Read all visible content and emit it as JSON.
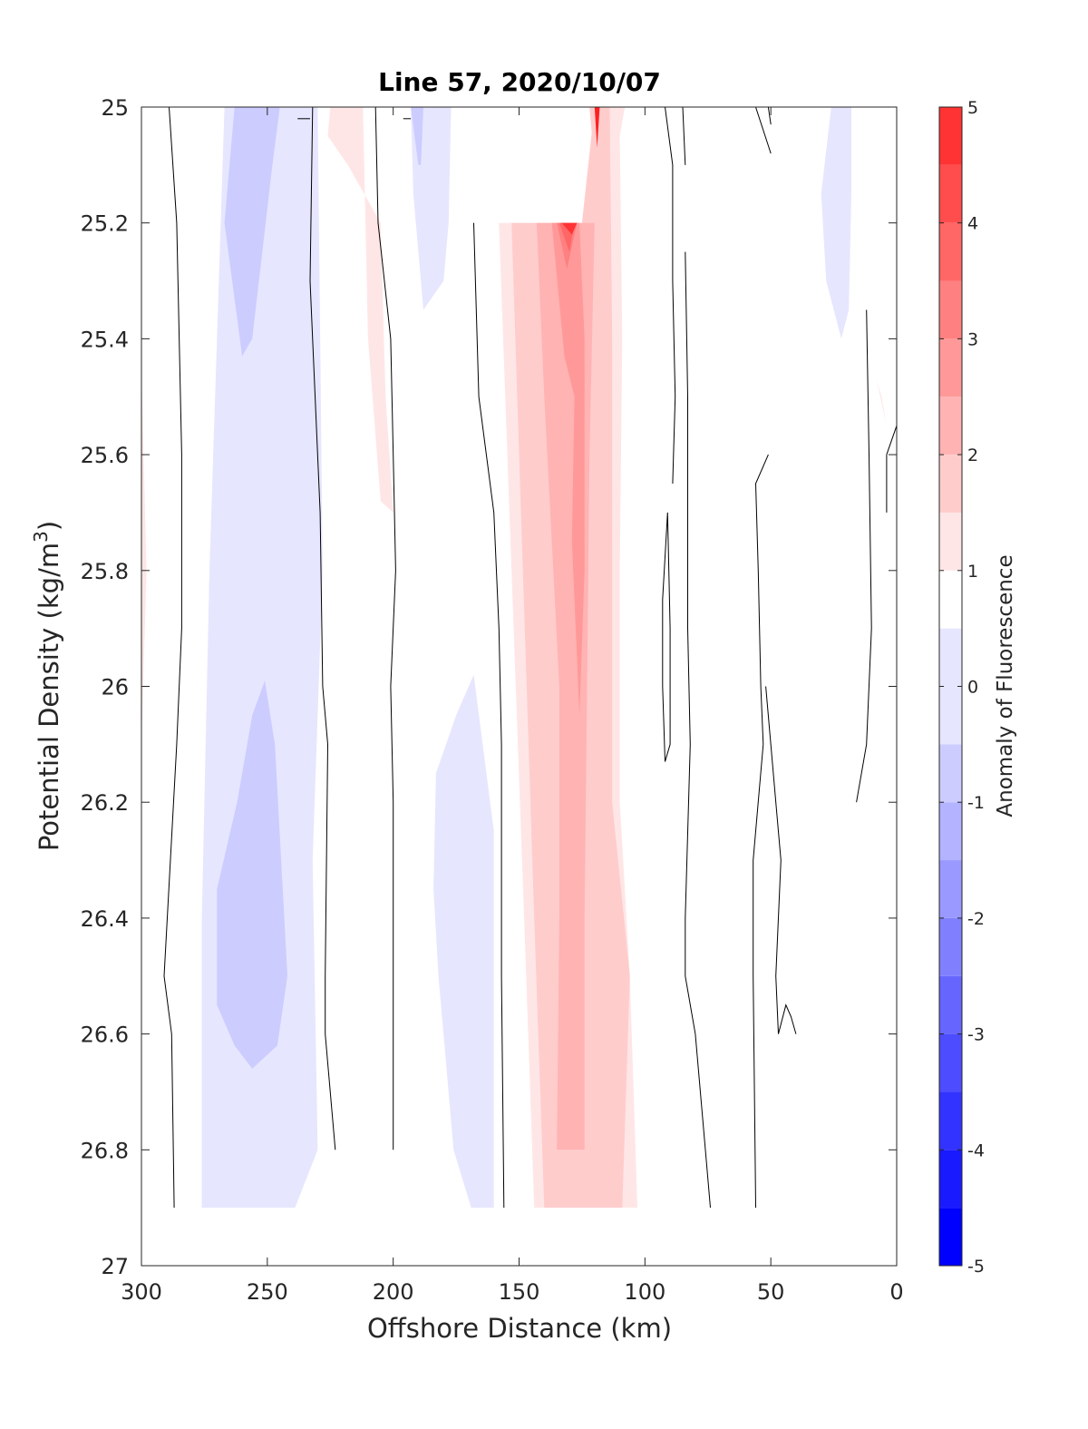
{
  "chart_data": {
    "type": "contour",
    "title": "Line 57, 2020/10/07",
    "xlabel": "Offshore Distance (km)",
    "ylabel_main": "Potential Density (kg/m",
    "ylabel_sup": "3",
    "ylabel_close": ")",
    "xlim": [
      300,
      0
    ],
    "ylim": [
      25,
      27
    ],
    "x_reversed": true,
    "y_reversed": true,
    "xticks": [
      300,
      250,
      200,
      150,
      100,
      50,
      0
    ],
    "yticks": [
      25,
      25.2,
      25.4,
      25.6,
      25.8,
      26,
      26.2,
      26.4,
      26.6,
      26.8,
      27
    ],
    "ytick_labels": [
      "25",
      "25.2",
      "25.4",
      "25.6",
      "25.8",
      "26",
      "26.2",
      "26.4",
      "26.6",
      "26.8",
      "27"
    ],
    "colorbar": {
      "label": "Anomaly of Fluorescence",
      "limits": [
        -5,
        5
      ],
      "ticks": [
        -5,
        -4,
        -3,
        -2,
        -1,
        0,
        1,
        2,
        3,
        4,
        5
      ],
      "levels": [
        -5,
        -4.5,
        -4,
        -3.5,
        -3,
        -2.5,
        -2,
        -1.5,
        -1,
        -0.5,
        0.5,
        1,
        1.5,
        2,
        2.5,
        3,
        3.5,
        4,
        4.5,
        5
      ],
      "colors": [
        "#0000ff",
        "#1a1aff",
        "#3333ff",
        "#4d4dff",
        "#6666ff",
        "#8080ff",
        "#9999ff",
        "#b3b3ff",
        "#ccccff",
        "#e6e6ff",
        "#ffffff",
        "#ffe6e6",
        "#ffcccc",
        "#ffb3b3",
        "#ff9999",
        "#ff8080",
        "#ff6666",
        "#ff4d4d",
        "#ff3333",
        "#ff1a1a"
      ],
      "position": "right",
      "orientation": "vertical"
    },
    "regions": [
      {
        "level": -0.75,
        "color": "#e6e6ff",
        "points": [
          [
            295,
            25
          ],
          [
            267,
            25
          ],
          [
            273,
            25.8
          ],
          [
            276,
            26.4
          ],
          [
            276,
            26.9
          ],
          [
            239,
            26.9
          ],
          [
            230,
            26.8
          ],
          [
            232,
            26.3
          ],
          [
            228,
            25.8
          ],
          [
            230,
            25
          ]
        ]
      },
      {
        "level": -1.25,
        "color": "#ccccff",
        "points": [
          [
            263,
            25
          ],
          [
            245,
            25
          ],
          [
            248,
            25.1
          ],
          [
            256,
            25.4
          ],
          [
            260,
            25.43
          ],
          [
            267,
            25.2
          ]
        ]
      },
      {
        "level": -1.25,
        "color": "#ccccff",
        "points": [
          [
            251,
            25.99
          ],
          [
            247,
            26.1
          ],
          [
            242,
            26.5
          ],
          [
            246,
            26.62
          ],
          [
            256,
            26.66
          ],
          [
            263,
            26.62
          ],
          [
            270,
            26.55
          ],
          [
            270,
            26.35
          ],
          [
            262,
            26.2
          ],
          [
            256,
            26.05
          ]
        ]
      },
      {
        "level": 0.75,
        "color": "#ffe6e6",
        "points": [
          [
            300,
            25.45
          ],
          [
            298,
            25.8
          ],
          [
            300,
            26.1
          ]
        ]
      },
      {
        "level": 0.75,
        "color": "#ffe6e6",
        "points": [
          [
            225,
            25
          ],
          [
            212,
            25
          ],
          [
            210,
            25.4
          ],
          [
            205,
            25.68
          ],
          [
            200,
            25.7
          ],
          [
            203,
            25.5
          ],
          [
            205,
            25.2
          ],
          [
            218,
            25.1
          ],
          [
            226,
            25.05
          ]
        ]
      },
      {
        "level": -0.75,
        "color": "#e6e6ff",
        "points": [
          [
            193,
            25
          ],
          [
            177,
            25
          ],
          [
            178,
            25.2
          ],
          [
            180,
            25.3
          ],
          [
            188,
            25.35
          ],
          [
            192,
            25.15
          ]
        ]
      },
      {
        "level": -1.25,
        "color": "#ccccff",
        "points": [
          [
            193,
            25
          ],
          [
            188,
            25
          ],
          [
            189,
            25.1
          ],
          [
            190,
            25.1
          ]
        ]
      },
      {
        "level": -0.75,
        "color": "#e6e6ff",
        "points": [
          [
            168,
            25.98
          ],
          [
            160,
            26.25
          ],
          [
            160,
            26.9
          ],
          [
            169,
            26.9
          ],
          [
            176,
            26.8
          ],
          [
            182,
            26.5
          ],
          [
            184,
            26.35
          ],
          [
            183,
            26.15
          ],
          [
            175,
            26.05
          ]
        ]
      },
      {
        "level": 0.75,
        "color": "#ffe6e6",
        "points": [
          [
            158,
            25.2
          ],
          [
            148,
            26.4
          ],
          [
            144,
            26.9
          ],
          [
            109,
            26.9
          ],
          [
            103,
            26.9
          ],
          [
            106,
            26.5
          ],
          [
            110,
            26.2
          ],
          [
            110,
            25.8
          ],
          [
            109,
            25.4
          ],
          [
            110,
            25.05
          ],
          [
            108,
            25
          ],
          [
            120,
            25
          ],
          [
            125,
            25.2
          ]
        ]
      },
      {
        "level": 1.25,
        "color": "#ffcccc",
        "points": [
          [
            153,
            25.2
          ],
          [
            144,
            26.4
          ],
          [
            140,
            26.9
          ],
          [
            109,
            26.9
          ],
          [
            106,
            26.5
          ],
          [
            113,
            26.2
          ],
          [
            113,
            25.8
          ],
          [
            113,
            25.4
          ],
          [
            114,
            25
          ],
          [
            120,
            25
          ],
          [
            125,
            25.2
          ]
        ]
      },
      {
        "level": 1.75,
        "color": "#ffb3b3",
        "points": [
          [
            143,
            25.2
          ],
          [
            140,
            25.5
          ],
          [
            134,
            26
          ],
          [
            134,
            26.4
          ],
          [
            135,
            26.8
          ],
          [
            124,
            26.8
          ],
          [
            124,
            26.4
          ],
          [
            123,
            26
          ],
          [
            122,
            25.6
          ],
          [
            120,
            25.2
          ],
          [
            125,
            25.2
          ]
        ]
      },
      {
        "level": 2.25,
        "color": "#ff9999",
        "points": [
          [
            137,
            25.2
          ],
          [
            132,
            25.43
          ],
          [
            128,
            25.5
          ],
          [
            129,
            25.75
          ],
          [
            126,
            26.05
          ],
          [
            124,
            25.8
          ],
          [
            124,
            25.4
          ],
          [
            126,
            25.2
          ]
        ]
      },
      {
        "level": 2.75,
        "color": "#ff8080",
        "points": [
          [
            135,
            25.2
          ],
          [
            131,
            25.28
          ],
          [
            127,
            25.2
          ]
        ]
      },
      {
        "level": 3.25,
        "color": "#ff6666",
        "points": [
          [
            134,
            25.2
          ],
          [
            130,
            25.25
          ],
          [
            128,
            25.2
          ]
        ]
      },
      {
        "level": 3.75,
        "color": "#ff3333",
        "points": [
          [
            133,
            25.2
          ],
          [
            129,
            25.22
          ],
          [
            127,
            25.2
          ]
        ]
      },
      {
        "level": 1.25,
        "color": "#ffcccc",
        "points": [
          [
            122,
            25
          ],
          [
            118,
            25
          ],
          [
            119,
            25.15
          ]
        ]
      },
      {
        "level": 3.75,
        "color": "#ff2020",
        "points": [
          [
            120,
            25
          ],
          [
            118,
            25
          ],
          [
            119,
            25.07
          ]
        ]
      },
      {
        "level": -0.75,
        "color": "#e6e6ff",
        "points": [
          [
            26,
            25
          ],
          [
            18,
            25
          ],
          [
            18,
            25.15
          ],
          [
            19,
            25.35
          ],
          [
            22,
            25.4
          ],
          [
            28,
            25.3
          ],
          [
            30,
            25.15
          ]
        ]
      },
      {
        "level": 0.75,
        "color": "#ffe6e6",
        "points": [
          [
            8,
            25.47
          ],
          [
            4,
            25.55
          ],
          [
            6,
            25.5
          ]
        ]
      }
    ],
    "contour_lines": [
      [
        [
          289,
          25
        ],
        [
          286,
          25.2
        ],
        [
          284,
          25.6
        ],
        [
          284,
          25.9
        ],
        [
          286,
          26.1
        ],
        [
          291,
          26.5
        ],
        [
          288,
          26.6
        ],
        [
          287,
          26.9
        ]
      ],
      [
        [
          238,
          25.02
        ],
        [
          233,
          25.02
        ]
      ],
      [
        [
          232,
          25
        ],
        [
          233,
          25.3
        ],
        [
          229,
          25.7
        ],
        [
          228,
          26
        ],
        [
          226,
          26.1
        ],
        [
          227,
          26.5
        ],
        [
          227,
          26.6
        ],
        [
          223,
          26.8
        ]
      ],
      [
        [
          207,
          25
        ],
        [
          206,
          25.2
        ],
        [
          201,
          25.4
        ],
        [
          200,
          25.6
        ],
        [
          199,
          25.8
        ],
        [
          201,
          26
        ],
        [
          200,
          26.2
        ],
        [
          200,
          26.6
        ],
        [
          200,
          26.8
        ]
      ],
      [
        [
          196,
          25.02
        ],
        [
          193,
          25.02
        ]
      ],
      [
        [
          168,
          25.2
        ],
        [
          166,
          25.5
        ],
        [
          160,
          25.7
        ],
        [
          158,
          25.9
        ],
        [
          157,
          26.1
        ],
        [
          157,
          26.5
        ],
        [
          156,
          26.9
        ]
      ],
      [
        [
          92,
          25
        ],
        [
          89,
          25.1
        ],
        [
          89,
          25.3
        ],
        [
          88,
          25.5
        ],
        [
          89,
          25.65
        ]
      ],
      [
        [
          85,
          25
        ],
        [
          84,
          25.1
        ]
      ],
      [
        [
          84,
          25.25
        ],
        [
          83,
          25.5
        ],
        [
          83,
          25.7
        ],
        [
          83,
          25.9
        ],
        [
          82,
          26.1
        ],
        [
          84,
          26.4
        ],
        [
          84,
          26.5
        ],
        [
          80,
          26.6
        ],
        [
          76,
          26.8
        ],
        [
          74,
          26.9
        ]
      ],
      [
        [
          91,
          25.7
        ],
        [
          90,
          25.9
        ],
        [
          90,
          26.1
        ],
        [
          92,
          26.13
        ],
        [
          93,
          26.0
        ],
        [
          93,
          25.85
        ],
        [
          91,
          25.7
        ]
      ],
      [
        [
          51,
          25
        ],
        [
          50,
          25.03
        ]
      ],
      [
        [
          51,
          25.6
        ],
        [
          56,
          25.65
        ],
        [
          55,
          25.8
        ],
        [
          54,
          26
        ],
        [
          53,
          26.1
        ],
        [
          57,
          26.3
        ],
        [
          57,
          26.5
        ],
        [
          56,
          26.9
        ]
      ],
      [
        [
          52,
          26.0
        ],
        [
          48,
          26.2
        ],
        [
          46,
          26.3
        ],
        [
          48,
          26.5
        ],
        [
          47,
          26.6
        ],
        [
          44,
          26.55
        ],
        [
          42,
          26.57
        ],
        [
          40,
          26.6
        ]
      ],
      [
        [
          56,
          25
        ],
        [
          50,
          25.08
        ]
      ],
      [
        [
          12,
          25.35
        ],
        [
          11,
          25.6
        ],
        [
          10,
          25.9
        ],
        [
          12,
          26.1
        ],
        [
          16,
          26.2
        ]
      ],
      [
        [
          4,
          25.6
        ],
        [
          0,
          25.55
        ]
      ],
      [
        [
          4,
          25.6
        ],
        [
          4,
          25.7
        ]
      ]
    ]
  }
}
